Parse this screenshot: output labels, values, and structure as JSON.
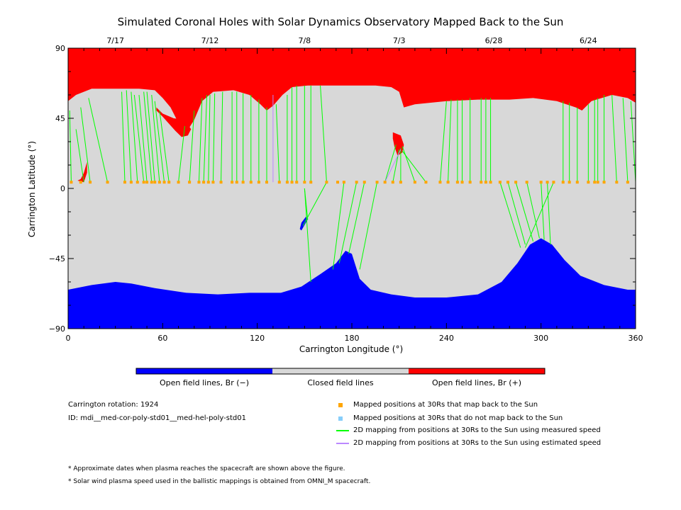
{
  "chart_data": {
    "type": "scatter",
    "title": "Simulated Coronal Holes with Solar Dynamics Observatory Mapped Back to the Sun",
    "xlabel": "Carrington Longitude (°)",
    "ylabel": "Carrington Latitude (°)",
    "xlim": [
      0,
      360
    ],
    "ylim": [
      -90,
      90
    ],
    "xticks": [
      0,
      60,
      120,
      180,
      240,
      300,
      360
    ],
    "yticks": [
      90,
      45,
      0,
      -45,
      -90
    ],
    "ytick_labels": [
      "90",
      "45",
      "0",
      "−45",
      "−90"
    ],
    "top_axis_dates": [
      {
        "label": "7/17",
        "lon": 30
      },
      {
        "label": "7/12",
        "lon": 90
      },
      {
        "label": "7/8",
        "lon": 150
      },
      {
        "label": "7/3",
        "lon": 210
      },
      {
        "label": "6/28",
        "lon": 270
      },
      {
        "label": "6/24",
        "lon": 330
      }
    ],
    "colors": {
      "positive_open": "#ff0000",
      "negative_open": "#0000ff",
      "closed": "#d8d8d8",
      "mapped_point": "#ffa500",
      "unmapped_point": "#87cefa",
      "measured_line": "#00ff00",
      "estimated_line": "#bb88ff"
    },
    "regions": {
      "north_boundary": [
        [
          0,
          56
        ],
        [
          5,
          60
        ],
        [
          15,
          64
        ],
        [
          30,
          64
        ],
        [
          45,
          64
        ],
        [
          55,
          63
        ],
        [
          60,
          58
        ],
        [
          65,
          52
        ],
        [
          70,
          42
        ],
        [
          75,
          36
        ],
        [
          80,
          44
        ],
        [
          85,
          56
        ],
        [
          92,
          62
        ],
        [
          105,
          63
        ],
        [
          115,
          60
        ],
        [
          122,
          54
        ],
        [
          126,
          50
        ],
        [
          130,
          53
        ],
        [
          136,
          60
        ],
        [
          142,
          65
        ],
        [
          152,
          66
        ],
        [
          165,
          66
        ],
        [
          180,
          66
        ],
        [
          195,
          66
        ],
        [
          205,
          65
        ],
        [
          210,
          62
        ],
        [
          213,
          52
        ],
        [
          220,
          54
        ],
        [
          240,
          56
        ],
        [
          260,
          57
        ],
        [
          280,
          57
        ],
        [
          295,
          58
        ],
        [
          310,
          56
        ],
        [
          322,
          52
        ],
        [
          326,
          50
        ],
        [
          332,
          56
        ],
        [
          345,
          60
        ],
        [
          355,
          58
        ],
        [
          360,
          55
        ]
      ],
      "south_boundary": [
        [
          0,
          -65
        ],
        [
          15,
          -62
        ],
        [
          30,
          -60
        ],
        [
          40,
          -61
        ],
        [
          55,
          -64
        ],
        [
          75,
          -67
        ],
        [
          95,
          -68
        ],
        [
          115,
          -67
        ],
        [
          135,
          -67
        ],
        [
          148,
          -63
        ],
        [
          160,
          -55
        ],
        [
          170,
          -48
        ],
        [
          176,
          -40
        ],
        [
          180,
          -42
        ],
        [
          185,
          -58
        ],
        [
          192,
          -65
        ],
        [
          205,
          -68
        ],
        [
          220,
          -70
        ],
        [
          240,
          -70
        ],
        [
          260,
          -68
        ],
        [
          275,
          -60
        ],
        [
          285,
          -48
        ],
        [
          293,
          -36
        ],
        [
          300,
          -32
        ],
        [
          307,
          -36
        ],
        [
          315,
          -46
        ],
        [
          325,
          -56
        ],
        [
          340,
          -62
        ],
        [
          355,
          -65
        ],
        [
          360,
          -65
        ]
      ],
      "red_patches": [
        [
          [
            56,
            50
          ],
          [
            60,
            46
          ],
          [
            68,
            37
          ],
          [
            72,
            33
          ],
          [
            76,
            34
          ],
          [
            78,
            38
          ],
          [
            74,
            44
          ],
          [
            67,
            45
          ],
          [
            60,
            48
          ],
          [
            56,
            52
          ]
        ],
        [
          [
            206,
            36
          ],
          [
            211,
            34
          ],
          [
            213,
            28
          ],
          [
            212,
            23
          ],
          [
            209,
            21
          ],
          [
            207,
            27
          ],
          [
            206,
            32
          ]
        ],
        [
          [
            6,
            5
          ],
          [
            10,
            4
          ],
          [
            12,
            10
          ],
          [
            12,
            17
          ],
          [
            10,
            10
          ],
          [
            8,
            6
          ]
        ]
      ],
      "blue_patches": [
        [
          [
            148,
            -27
          ],
          [
            152,
            -20
          ],
          [
            151,
            -18
          ],
          [
            148,
            -22
          ],
          [
            147,
            -26
          ]
        ]
      ]
    },
    "mapped_points_lon": [
      2,
      8,
      14,
      25,
      36,
      40,
      44,
      48,
      50,
      53,
      55,
      58,
      61,
      64,
      70,
      77,
      83,
      86,
      89,
      92,
      97,
      104,
      107,
      111,
      116,
      121,
      126,
      134,
      139,
      142,
      145,
      150,
      154,
      164,
      171,
      175,
      183,
      188,
      196,
      201,
      206,
      211,
      220,
      227,
      236,
      241,
      247,
      250,
      255,
      262,
      265,
      268,
      274,
      279,
      284,
      291,
      300,
      304,
      308,
      314,
      318,
      323,
      330,
      334,
      336,
      340,
      348,
      355
    ],
    "unmapped_points_lon": [],
    "measured_lines": [
      [
        [
          5,
          38
        ],
        [
          10,
          4
        ]
      ],
      [
        [
          1,
          50
        ],
        [
          2,
          4
        ]
      ],
      [
        [
          8,
          52
        ],
        [
          14,
          4
        ]
      ],
      [
        [
          13,
          58
        ],
        [
          25,
          4
        ]
      ],
      [
        [
          34,
          62
        ],
        [
          36,
          4
        ]
      ],
      [
        [
          37,
          63
        ],
        [
          40,
          4
        ]
      ],
      [
        [
          40,
          62
        ],
        [
          44,
          4
        ]
      ],
      [
        [
          42,
          60
        ],
        [
          48,
          4
        ]
      ],
      [
        [
          45,
          60
        ],
        [
          50,
          4
        ]
      ],
      [
        [
          48,
          62
        ],
        [
          53,
          4
        ]
      ],
      [
        [
          50,
          62
        ],
        [
          55,
          4
        ]
      ],
      [
        [
          53,
          60
        ],
        [
          58,
          4
        ]
      ],
      [
        [
          55,
          56
        ],
        [
          61,
          4
        ]
      ],
      [
        [
          58,
          50
        ],
        [
          64,
          4
        ]
      ],
      [
        [
          74,
          40
        ],
        [
          70,
          4
        ]
      ],
      [
        [
          80,
          50
        ],
        [
          77,
          4
        ]
      ],
      [
        [
          85,
          58
        ],
        [
          83,
          4
        ]
      ],
      [
        [
          88,
          60
        ],
        [
          86,
          4
        ]
      ],
      [
        [
          90,
          60
        ],
        [
          89,
          4
        ]
      ],
      [
        [
          93,
          61
        ],
        [
          92,
          4
        ]
      ],
      [
        [
          98,
          62
        ],
        [
          97,
          4
        ]
      ],
      [
        [
          104,
          62
        ],
        [
          104,
          4
        ]
      ],
      [
        [
          107,
          62
        ],
        [
          107,
          4
        ]
      ],
      [
        [
          111,
          61
        ],
        [
          111,
          4
        ]
      ],
      [
        [
          116,
          60
        ],
        [
          116,
          4
        ]
      ],
      [
        [
          121,
          57
        ],
        [
          121,
          4
        ]
      ],
      [
        [
          126,
          52
        ],
        [
          126,
          4
        ]
      ],
      [
        [
          132,
          54
        ],
        [
          134,
          4
        ]
      ],
      [
        [
          139,
          60
        ],
        [
          139,
          4
        ]
      ],
      [
        [
          142,
          65
        ],
        [
          142,
          4
        ]
      ],
      [
        [
          145,
          66
        ],
        [
          145,
          4
        ]
      ],
      [
        [
          150,
          66
        ],
        [
          150,
          4
        ]
      ],
      [
        [
          154,
          66
        ],
        [
          154,
          4
        ]
      ],
      [
        [
          160,
          66
        ],
        [
          164,
          4
        ]
      ],
      [
        [
          150,
          0
        ],
        [
          152,
          -20
        ]
      ],
      [
        [
          164,
          4
        ],
        [
          149,
          -24
        ]
      ],
      [
        [
          150,
          0
        ],
        [
          154,
          -60
        ]
      ],
      [
        [
          175,
          4
        ],
        [
          168,
          -52
        ]
      ],
      [
        [
          183,
          4
        ],
        [
          172,
          -48
        ]
      ],
      [
        [
          188,
          4
        ],
        [
          178,
          -42
        ]
      ],
      [
        [
          196,
          4
        ],
        [
          185,
          -52
        ]
      ],
      [
        [
          201,
          4
        ],
        [
          208,
          28
        ]
      ],
      [
        [
          206,
          4
        ],
        [
          210,
          25
        ]
      ],
      [
        [
          211,
          4
        ],
        [
          211,
          26
        ]
      ],
      [
        [
          220,
          4
        ],
        [
          212,
          27
        ]
      ],
      [
        [
          227,
          4
        ],
        [
          212,
          24
        ]
      ],
      [
        [
          240,
          56
        ],
        [
          236,
          4
        ]
      ],
      [
        [
          243,
          57
        ],
        [
          241,
          4
        ]
      ],
      [
        [
          247,
          57
        ],
        [
          247,
          4
        ]
      ],
      [
        [
          250,
          57
        ],
        [
          250,
          4
        ]
      ],
      [
        [
          255,
          58
        ],
        [
          255,
          4
        ]
      ],
      [
        [
          262,
          58
        ],
        [
          262,
          4
        ]
      ],
      [
        [
          265,
          58
        ],
        [
          265,
          4
        ]
      ],
      [
        [
          268,
          58
        ],
        [
          268,
          4
        ]
      ],
      [
        [
          274,
          4
        ],
        [
          287,
          -38
        ]
      ],
      [
        [
          279,
          4
        ],
        [
          290,
          -36
        ]
      ],
      [
        [
          284,
          4
        ],
        [
          295,
          -34
        ]
      ],
      [
        [
          291,
          4
        ],
        [
          299,
          -32
        ]
      ],
      [
        [
          300,
          4
        ],
        [
          302,
          -33
        ]
      ],
      [
        [
          304,
          4
        ],
        [
          306,
          -36
        ]
      ],
      [
        [
          308,
          4
        ],
        [
          290,
          -38
        ]
      ],
      [
        [
          314,
          56
        ],
        [
          314,
          4
        ]
      ],
      [
        [
          318,
          55
        ],
        [
          318,
          4
        ]
      ],
      [
        [
          323,
          52
        ],
        [
          323,
          4
        ]
      ],
      [
        [
          330,
          54
        ],
        [
          330,
          4
        ]
      ],
      [
        [
          334,
          57
        ],
        [
          334,
          4
        ]
      ],
      [
        [
          336,
          58
        ],
        [
          336,
          4
        ]
      ],
      [
        [
          340,
          60
        ],
        [
          340,
          4
        ]
      ],
      [
        [
          345,
          60
        ],
        [
          348,
          4
        ]
      ],
      [
        [
          352,
          58
        ],
        [
          355,
          4
        ]
      ],
      [
        [
          357,
          56
        ],
        [
          360,
          4
        ]
      ]
    ],
    "estimated_lines": [
      [
        [
          130,
          60
        ],
        [
          130,
          4
        ]
      ],
      [
        [
          201,
          4
        ],
        [
          211,
          25
        ]
      ]
    ],
    "colorbar": {
      "labels": [
        "Open field lines, Br (−)",
        "Closed field lines",
        "Open field lines, Br (+)"
      ]
    },
    "info": {
      "rotation": "Carrington rotation: 1924",
      "id": "ID: mdi__med-cor-poly-std01__med-hel-poly-std01"
    },
    "legend": [
      {
        "label": "Mapped positions at 30Rs that map back to the Sun",
        "kind": "square",
        "color_key": "mapped_point"
      },
      {
        "label": "Mapped positions at 30Rs that do not map back to the Sun",
        "kind": "square",
        "color_key": "unmapped_point"
      },
      {
        "label": "2D mapping from positions at 30Rs to the Sun using measured speed",
        "kind": "line",
        "color_key": "measured_line"
      },
      {
        "label": "2D mapping from positions at 30Rs to the Sun using estimated speed",
        "kind": "line",
        "color_key": "estimated_line"
      }
    ],
    "footnotes": [
      "* Approximate dates when plasma reaches the spacecraft are shown above the figure.",
      "* Solar wind plasma speed used in the ballistic mappings is obtained from OMNI_M spacecraft."
    ]
  }
}
